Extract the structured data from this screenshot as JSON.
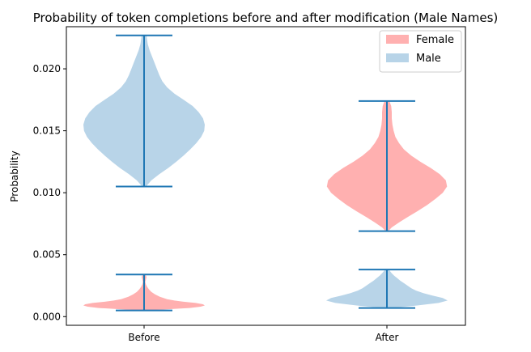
{
  "chart_data": {
    "type": "violin",
    "title": "Probability of token completions before and after modification (Male Names)",
    "xlabel": "",
    "ylabel": "Probability",
    "categories": [
      "Before",
      "After"
    ],
    "ylim": [
      -0.0007,
      0.0234
    ],
    "yticks": [
      "0.000",
      "0.005",
      "0.010",
      "0.015",
      "0.020"
    ],
    "yticks_values": [
      0.0,
      0.005,
      0.01,
      0.015,
      0.02
    ],
    "legend": {
      "placement": "top-right",
      "entries": [
        "Female",
        "Male"
      ]
    },
    "colors": {
      "Female": "#ffb0b0",
      "Male": "#b8d4e8",
      "extrema_line": "#1f77b4"
    },
    "series": [
      {
        "name": "Female",
        "violins": [
          {
            "category": "Before",
            "min": 0.0005,
            "max": 0.0034,
            "profile": [
              [
                0.0005,
                0.05
              ],
              [
                0.0006,
                0.4
              ],
              [
                0.0007,
                0.75
              ],
              [
                0.0008,
                0.93
              ],
              [
                0.0009,
                1.0
              ],
              [
                0.001,
                0.97
              ],
              [
                0.0011,
                0.85
              ],
              [
                0.0012,
                0.65
              ],
              [
                0.0013,
                0.5
              ],
              [
                0.0014,
                0.38
              ],
              [
                0.0016,
                0.26
              ],
              [
                0.0018,
                0.18
              ],
              [
                0.002,
                0.12
              ],
              [
                0.0022,
                0.08
              ],
              [
                0.0024,
                0.05
              ],
              [
                0.0026,
                0.03
              ],
              [
                0.0028,
                0.02
              ],
              [
                0.003,
                0.03
              ],
              [
                0.0032,
                0.04
              ],
              [
                0.0034,
                0.02
              ]
            ]
          },
          {
            "category": "After",
            "min": 0.0069,
            "max": 0.0174,
            "profile": [
              [
                0.0069,
                0.02
              ],
              [
                0.0072,
                0.08
              ],
              [
                0.0076,
                0.2
              ],
              [
                0.008,
                0.33
              ],
              [
                0.0085,
                0.5
              ],
              [
                0.009,
                0.66
              ],
              [
                0.0095,
                0.8
              ],
              [
                0.01,
                0.92
              ],
              [
                0.0105,
                0.99
              ],
              [
                0.011,
                0.97
              ],
              [
                0.0115,
                0.87
              ],
              [
                0.012,
                0.72
              ],
              [
                0.0125,
                0.55
              ],
              [
                0.013,
                0.4
              ],
              [
                0.0135,
                0.28
              ],
              [
                0.014,
                0.2
              ],
              [
                0.0145,
                0.14
              ],
              [
                0.015,
                0.11
              ],
              [
                0.0155,
                0.09
              ],
              [
                0.016,
                0.08
              ],
              [
                0.0165,
                0.08
              ],
              [
                0.017,
                0.07
              ],
              [
                0.0174,
                0.04
              ]
            ]
          }
        ]
      },
      {
        "name": "Male",
        "violins": [
          {
            "category": "Before",
            "min": 0.0105,
            "max": 0.0227,
            "profile": [
              [
                0.0105,
                0.03
              ],
              [
                0.011,
                0.12
              ],
              [
                0.0115,
                0.25
              ],
              [
                0.012,
                0.4
              ],
              [
                0.0125,
                0.53
              ],
              [
                0.013,
                0.65
              ],
              [
                0.0135,
                0.76
              ],
              [
                0.014,
                0.86
              ],
              [
                0.0145,
                0.94
              ],
              [
                0.015,
                0.99
              ],
              [
                0.0155,
                1.0
              ],
              [
                0.016,
                0.97
              ],
              [
                0.0165,
                0.9
              ],
              [
                0.017,
                0.8
              ],
              [
                0.0175,
                0.65
              ],
              [
                0.018,
                0.5
              ],
              [
                0.0185,
                0.38
              ],
              [
                0.019,
                0.3
              ],
              [
                0.0195,
                0.25
              ],
              [
                0.02,
                0.21
              ],
              [
                0.0205,
                0.17
              ],
              [
                0.021,
                0.13
              ],
              [
                0.0215,
                0.09
              ],
              [
                0.022,
                0.06
              ],
              [
                0.0227,
                0.04
              ]
            ]
          },
          {
            "category": "After",
            "min": 0.0007,
            "max": 0.0038,
            "profile": [
              [
                0.0007,
                0.08
              ],
              [
                0.0009,
                0.5
              ],
              [
                0.0011,
                0.85
              ],
              [
                0.0013,
                1.0
              ],
              [
                0.0015,
                0.92
              ],
              [
                0.0017,
                0.75
              ],
              [
                0.0019,
                0.6
              ],
              [
                0.0021,
                0.48
              ],
              [
                0.0023,
                0.4
              ],
              [
                0.0025,
                0.34
              ],
              [
                0.0027,
                0.28
              ],
              [
                0.0029,
                0.22
              ],
              [
                0.0031,
                0.17
              ],
              [
                0.0033,
                0.12
              ],
              [
                0.0035,
                0.08
              ],
              [
                0.0038,
                0.03
              ]
            ]
          }
        ]
      }
    ]
  }
}
